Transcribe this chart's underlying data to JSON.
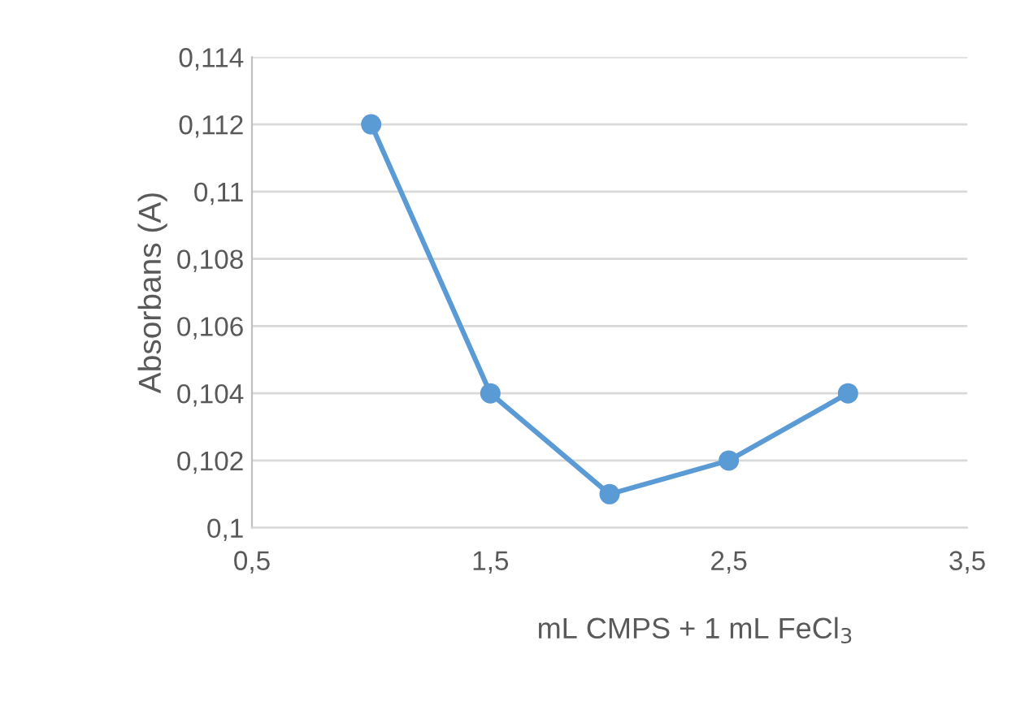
{
  "chart_data": {
    "type": "line",
    "xlabel": "mL CMPS + 1 mL FeCl$_{3}$",
    "ylabel": "Absorbans (A)",
    "x": [
      1,
      1.5,
      2,
      2.5,
      3
    ],
    "series": [
      {
        "color": "#5b9bd5",
        "values": [
          0.112,
          0.104,
          0.101,
          0.102,
          0.104
        ]
      }
    ],
    "xlim": [
      0.5,
      3.5
    ],
    "xticks": [
      {
        "value": 0.5,
        "label": "0,5"
      },
      {
        "value": 1.5,
        "label": "1,5"
      },
      {
        "value": 2.5,
        "label": "2,5"
      },
      {
        "value": 3.5,
        "label": "3,5"
      }
    ],
    "ylim": [
      0.1,
      0.114
    ],
    "yticks": [
      {
        "value": 0.1,
        "label": "0,1"
      },
      {
        "value": 0.102,
        "label": "0,102"
      },
      {
        "value": 0.104,
        "label": "0,104"
      },
      {
        "value": 0.106,
        "label": "0,106"
      },
      {
        "value": 0.108,
        "label": "0,108"
      },
      {
        "value": 0.11,
        "label": "0,11"
      },
      {
        "value": 0.112,
        "label": "0,112"
      },
      {
        "value": 0.114,
        "label": "0,114"
      }
    ],
    "grid": "y",
    "marker": "circle",
    "line_style": "solid",
    "legend": false
  }
}
